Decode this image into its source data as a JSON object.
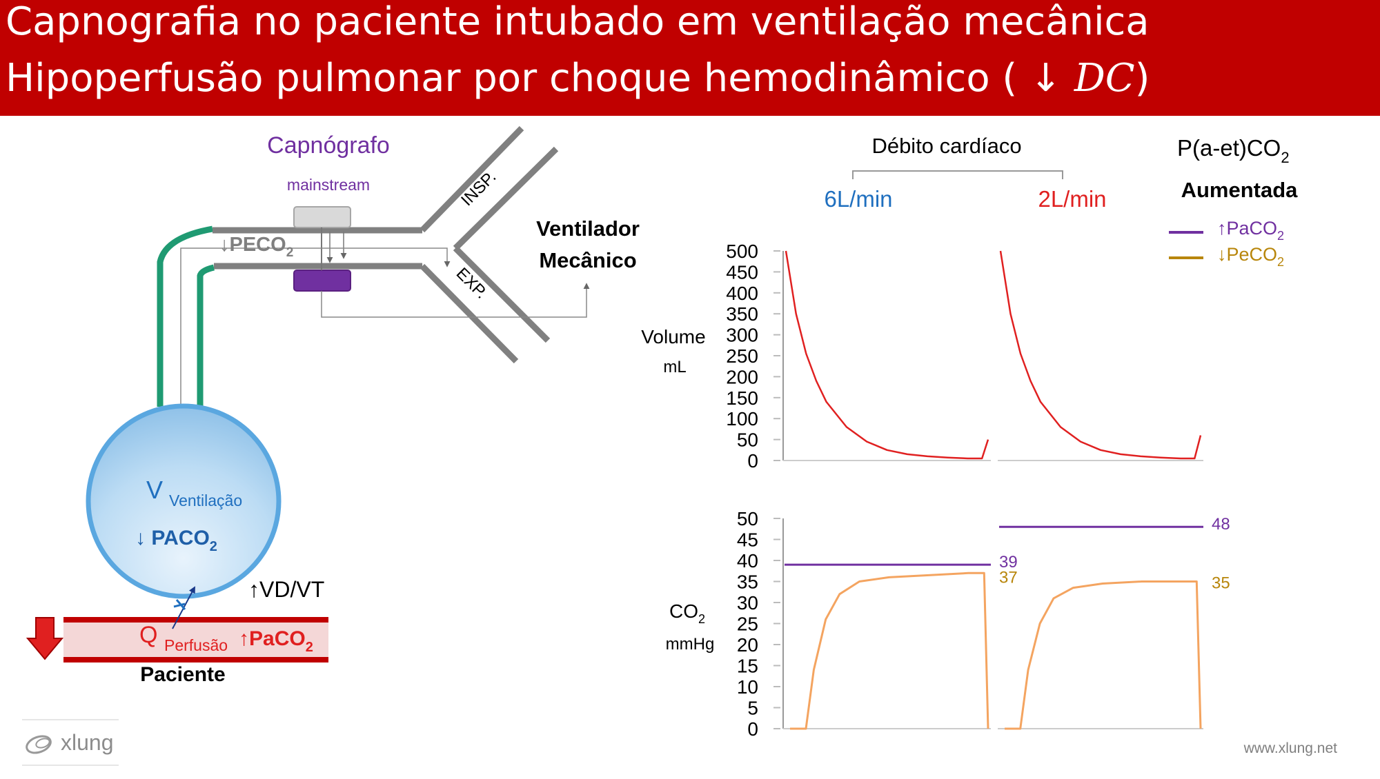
{
  "header": {
    "title_line1": "Capnografia no paciente intubado em ventilação mecânica",
    "title_line2_prefix": "Hipoperfusão pulmonar por choque hemodinâmico (",
    "title_line2_arrow": "↓",
    "title_line2_math": "DC",
    "title_line2_suffix": ")"
  },
  "colors": {
    "header_bg": "#c00000",
    "purple": "#7030a0",
    "orange": "#f4a460",
    "red": "#e02020",
    "blue": "#1f6fbf",
    "green_tube": "#1f9a72",
    "gold": "#b8860b"
  },
  "device": {
    "capnograph_title": "Capnógrafo",
    "mainstream_label": "mainstream",
    "insp_label": "INSP.",
    "exp_label": "EXP.",
    "ventilator_line1": "Ventilador",
    "ventilator_line2": "Mecânico",
    "peco2_label": "↓PECO",
    "peco2_sub": "2"
  },
  "patient": {
    "v_symbol": "V",
    "v_label": "Ventilação",
    "paco2_label": "↓ PACO",
    "paco2_sub": "2",
    "vd_vt_label": "↑VD/VT",
    "q_symbol": "Q",
    "q_label": "Perfusão",
    "arterial_label": "↑PaCO",
    "arterial_sub": "2",
    "patient_label": "Paciente"
  },
  "branding": {
    "logo_text": "xlung",
    "website": "www.xlung.net"
  },
  "chart_header": {
    "group_title": "Débito cardíaco",
    "cond1": "6L/min",
    "cond2": "2L/min",
    "pa_et_main": "P(a-et)CO",
    "pa_et_sub": "2",
    "pa_et_status": "Aumentada",
    "legend_paco2": "↑PaCO",
    "legend_paco2_sub": "2",
    "legend_peco2": "↓PeCO",
    "legend_peco2_sub": "2"
  },
  "chart_data": [
    {
      "type": "line",
      "ylabel": "Volume",
      "yunit": "mL",
      "ylim": [
        0,
        500
      ],
      "yticks": [
        "500",
        "450",
        "400",
        "350",
        "300",
        "250",
        "200",
        "150",
        "100",
        "50",
        "0"
      ],
      "series": [
        {
          "name": "6L/min",
          "t": [
            0,
            0.05,
            0.1,
            0.15,
            0.2,
            0.3,
            0.4,
            0.5,
            0.6,
            0.7,
            0.8,
            0.9,
            0.97,
            1.0
          ],
          "values": [
            500,
            350,
            255,
            190,
            140,
            80,
            45,
            25,
            15,
            10,
            7,
            5,
            5,
            50
          ]
        },
        {
          "name": "2L/min",
          "t": [
            0,
            0.05,
            0.1,
            0.15,
            0.2,
            0.3,
            0.4,
            0.5,
            0.6,
            0.7,
            0.8,
            0.9,
            0.97,
            1.0
          ],
          "values": [
            500,
            350,
            255,
            190,
            140,
            80,
            45,
            25,
            15,
            10,
            7,
            5,
            5,
            60
          ]
        }
      ]
    },
    {
      "type": "line",
      "ylabel": "CO",
      "ylabel_sub": "2",
      "yunit": "mmHg",
      "ylim": [
        0,
        50
      ],
      "yticks": [
        "50",
        "45",
        "40",
        "35",
        "30",
        "25",
        "20",
        "15",
        "10",
        "5",
        "0"
      ],
      "series": [
        {
          "name": "↑PaCO2",
          "segments": [
            {
              "value": 39,
              "label": "39"
            },
            {
              "value": 48,
              "label": "48"
            }
          ]
        },
        {
          "name": "↓PeCO2",
          "t": [
            0,
            0.05,
            0.08,
            0.12,
            0.18,
            0.25,
            0.35,
            0.5,
            0.7,
            0.9,
            0.98,
            1.0
          ],
          "seg1": [
            0,
            0,
            0,
            14,
            26,
            32,
            35,
            36,
            36.5,
            37,
            37,
            0
          ],
          "seg2": [
            0,
            0,
            0,
            14,
            25,
            31,
            33.5,
            34.5,
            35,
            35,
            35,
            0
          ],
          "end_labels": [
            "37",
            "35"
          ]
        }
      ]
    }
  ]
}
